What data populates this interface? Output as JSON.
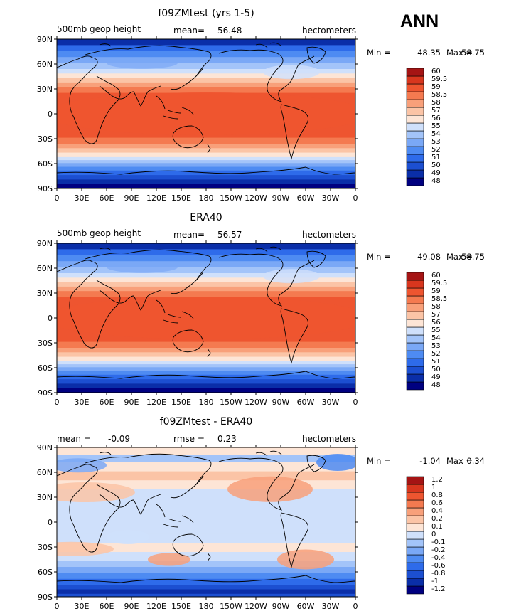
{
  "season_label": "ANN",
  "chart_data": [
    {
      "type": "heatmap",
      "title": "f09ZMtest (yrs 1-5)",
      "left_label": "500mb geop height",
      "mean_label": "mean=",
      "mean_value": "56.48",
      "units": "hectometers",
      "min_label": "Min =",
      "min_value": "48.35",
      "max_label": "Max =",
      "max_value": "58.75",
      "levels": [
        "48",
        "49",
        "50",
        "51",
        "52",
        "53",
        "54",
        "55",
        "56",
        "57",
        "58",
        "58.5",
        "59",
        "59.5",
        "60"
      ],
      "colors": [
        "#000080",
        "#0a2ea8",
        "#1c4fd1",
        "#2e6bea",
        "#4e8bf2",
        "#7aa8f6",
        "#a3c4f9",
        "#cfe0fb",
        "#fde5d6",
        "#fbc4a6",
        "#f8a07a",
        "#f47a50",
        "#ee5530",
        "#d8361e",
        "#a51414"
      ],
      "x_ticks": [
        "0",
        "30E",
        "60E",
        "90E",
        "120E",
        "150E",
        "180",
        "150W",
        "120W",
        "90W",
        "60W",
        "30W",
        "0"
      ],
      "y_ticks": [
        "90N",
        "60N",
        "30N",
        "0",
        "30S",
        "60S",
        "90S"
      ]
    },
    {
      "type": "heatmap",
      "title": "ERA40",
      "left_label": "500mb geop height",
      "mean_label": "mean=",
      "mean_value": "56.57",
      "units": "hectometers",
      "min_label": "Min =",
      "min_value": "49.08",
      "max_label": "Max =",
      "max_value": "58.75",
      "levels": [
        "48",
        "49",
        "50",
        "51",
        "52",
        "53",
        "54",
        "55",
        "56",
        "57",
        "58",
        "58.5",
        "59",
        "59.5",
        "60"
      ],
      "colors": [
        "#000080",
        "#0a2ea8",
        "#1c4fd1",
        "#2e6bea",
        "#4e8bf2",
        "#7aa8f6",
        "#a3c4f9",
        "#cfe0fb",
        "#fde5d6",
        "#fbc4a6",
        "#f8a07a",
        "#f47a50",
        "#ee5530",
        "#d8361e",
        "#a51414"
      ],
      "x_ticks": [
        "0",
        "30E",
        "60E",
        "90E",
        "120E",
        "150E",
        "180",
        "150W",
        "120W",
        "90W",
        "60W",
        "30W",
        "0"
      ],
      "y_ticks": [
        "90N",
        "60N",
        "30N",
        "0",
        "30S",
        "60S",
        "90S"
      ]
    },
    {
      "type": "heatmap",
      "title": "f09ZMtest - ERA40",
      "left_label": "mean =",
      "left_value": "-0.09",
      "mean_label": "rmse =",
      "mean_value": "0.23",
      "units": "hectometers",
      "min_label": "Min =",
      "min_value": "-1.04",
      "max_label": "Max =",
      "max_value": "0.34",
      "levels": [
        "-1.2",
        "-1",
        "-0.8",
        "-0.6",
        "-0.4",
        "-0.2",
        "-0.1",
        "0",
        "0.1",
        "0.2",
        "0.4",
        "0.6",
        "0.8",
        "1",
        "1.2"
      ],
      "colors": [
        "#000080",
        "#0a2ea8",
        "#1c4fd1",
        "#2e6bea",
        "#4e8bf2",
        "#7aa8f6",
        "#a3c4f9",
        "#cfe0fb",
        "#fde5d6",
        "#fbc4a6",
        "#f8a07a",
        "#f47a50",
        "#ee5530",
        "#d8361e",
        "#a51414"
      ],
      "x_ticks": [
        "0",
        "30E",
        "60E",
        "90E",
        "120E",
        "150E",
        "180",
        "150W",
        "120W",
        "90W",
        "60W",
        "30W",
        "0"
      ],
      "y_ticks": [
        "90N",
        "60N",
        "30N",
        "0",
        "30S",
        "60S",
        "90S"
      ]
    }
  ]
}
